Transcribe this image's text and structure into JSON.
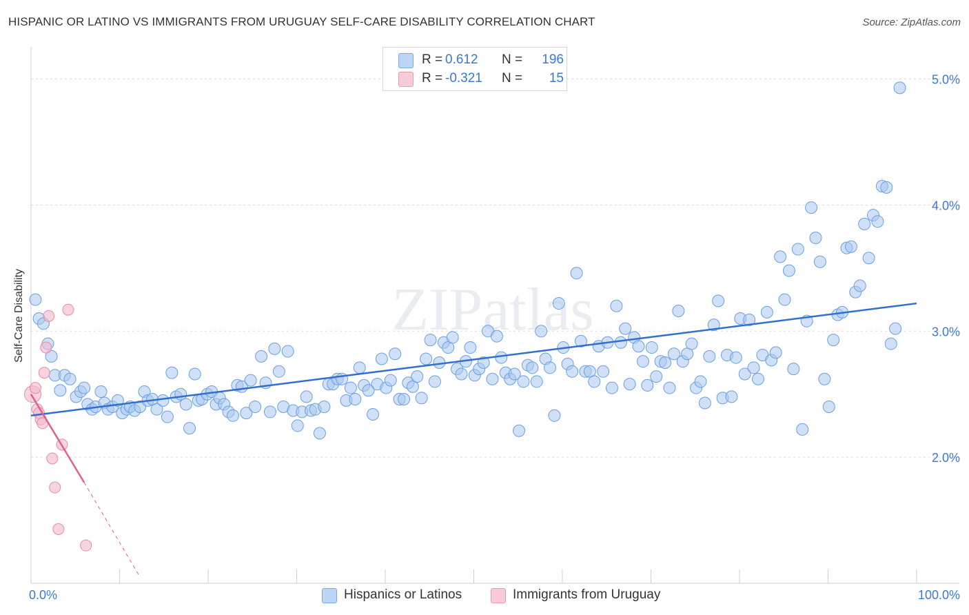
{
  "title": "HISPANIC OR LATINO VS IMMIGRANTS FROM URUGUAY SELF-CARE DISABILITY CORRELATION CHART",
  "source": "Source: ZipAtlas.com",
  "watermark": "ZIPatlas",
  "legend": {
    "rows": [
      {
        "label": "R =",
        "r": "0.612",
        "n_label": "N =",
        "n": "196",
        "color": "#a9c8f0"
      },
      {
        "label": "R =",
        "r": "-0.321",
        "n_label": "N =",
        "n": "15",
        "color": "#f4b8c9"
      }
    ]
  },
  "bottom_legend": [
    {
      "label": "Hispanics or Latinos",
      "color": "#a9c8f0"
    },
    {
      "label": "Immigrants from Uruguay",
      "color": "#f4b8c9"
    }
  ],
  "chart_data": {
    "type": "scatter",
    "title": "HISPANIC OR LATINO VS IMMIGRANTS FROM URUGUAY SELF-CARE DISABILITY CORRELATION CHART",
    "xlabel": "",
    "ylabel": "Self-Care Disability",
    "xlim": [
      0,
      100
    ],
    "ylim": [
      1.0,
      5.2
    ],
    "x_tick_labels": [
      "0.0%",
      "100.0%"
    ],
    "y_ticks": [
      2.0,
      3.0,
      4.0,
      5.0
    ],
    "y_tick_labels": [
      "2.0%",
      "3.0%",
      "4.0%",
      "5.0%"
    ],
    "grid": true,
    "colors": {
      "blue_fill": "#a9c8f0",
      "blue_stroke": "#6a9fe0",
      "blue_line": "#2f6fd0",
      "pink_fill": "#f4b8c9",
      "pink_stroke": "#e889a8",
      "pink_line": "#e0608a"
    },
    "series": [
      {
        "name": "Hispanics or Latinos",
        "R": 0.612,
        "N": 196,
        "trend": {
          "x0": 0,
          "y0": 2.33,
          "x1": 100,
          "y1": 3.22
        },
        "points": [
          [
            0.5,
            3.25
          ],
          [
            0.9,
            3.1
          ],
          [
            1.4,
            3.06
          ],
          [
            1.9,
            2.9
          ],
          [
            2.3,
            2.8
          ],
          [
            2.7,
            2.65
          ],
          [
            3.3,
            2.53
          ],
          [
            3.8,
            2.65
          ],
          [
            4.4,
            2.62
          ],
          [
            5.1,
            2.48
          ],
          [
            5.6,
            2.52
          ],
          [
            6.0,
            2.55
          ],
          [
            6.4,
            2.42
          ],
          [
            6.9,
            2.38
          ],
          [
            7.3,
            2.4
          ],
          [
            7.9,
            2.52
          ],
          [
            8.3,
            2.43
          ],
          [
            8.7,
            2.38
          ],
          [
            9.2,
            2.4
          ],
          [
            9.8,
            2.45
          ],
          [
            10.3,
            2.35
          ],
          [
            10.8,
            2.38
          ],
          [
            11.2,
            2.4
          ],
          [
            11.7,
            2.37
          ],
          [
            12.3,
            2.4
          ],
          [
            12.8,
            2.52
          ],
          [
            13.2,
            2.45
          ],
          [
            13.7,
            2.46
          ],
          [
            14.2,
            2.38
          ],
          [
            14.9,
            2.45
          ],
          [
            15.4,
            2.32
          ],
          [
            15.9,
            2.67
          ],
          [
            16.4,
            2.48
          ],
          [
            16.9,
            2.5
          ],
          [
            17.5,
            2.42
          ],
          [
            17.9,
            2.23
          ],
          [
            18.5,
            2.66
          ],
          [
            18.9,
            2.45
          ],
          [
            19.3,
            2.46
          ],
          [
            19.9,
            2.5
          ],
          [
            20.4,
            2.52
          ],
          [
            20.9,
            2.42
          ],
          [
            21.3,
            2.47
          ],
          [
            21.8,
            2.42
          ],
          [
            22.3,
            2.36
          ],
          [
            22.8,
            2.33
          ],
          [
            23.3,
            2.57
          ],
          [
            23.8,
            2.56
          ],
          [
            24.3,
            2.35
          ],
          [
            24.8,
            2.61
          ],
          [
            25.3,
            2.4
          ],
          [
            26.0,
            2.8
          ],
          [
            26.5,
            2.59
          ],
          [
            27.0,
            2.36
          ],
          [
            27.5,
            2.86
          ],
          [
            28.0,
            2.68
          ],
          [
            28.5,
            2.4
          ],
          [
            29.0,
            2.84
          ],
          [
            29.6,
            2.37
          ],
          [
            30.1,
            2.25
          ],
          [
            30.6,
            2.36
          ],
          [
            31.1,
            2.48
          ],
          [
            31.6,
            2.37
          ],
          [
            32.1,
            2.38
          ],
          [
            32.6,
            2.19
          ],
          [
            33.1,
            2.4
          ],
          [
            33.6,
            2.58
          ],
          [
            34.1,
            2.58
          ],
          [
            34.6,
            2.62
          ],
          [
            35.1,
            2.62
          ],
          [
            35.6,
            2.45
          ],
          [
            36.1,
            2.55
          ],
          [
            36.6,
            2.46
          ],
          [
            37.1,
            2.71
          ],
          [
            37.6,
            2.57
          ],
          [
            38.1,
            2.53
          ],
          [
            38.6,
            2.34
          ],
          [
            39.1,
            2.58
          ],
          [
            39.6,
            2.78
          ],
          [
            40.1,
            2.55
          ],
          [
            40.6,
            2.61
          ],
          [
            41.1,
            2.82
          ],
          [
            41.6,
            2.46
          ],
          [
            42.1,
            2.46
          ],
          [
            42.6,
            2.59
          ],
          [
            43.1,
            2.56
          ],
          [
            43.6,
            2.64
          ],
          [
            44.1,
            2.47
          ],
          [
            44.6,
            2.78
          ],
          [
            45.1,
            2.93
          ],
          [
            45.6,
            2.6
          ],
          [
            46.1,
            2.75
          ],
          [
            46.6,
            2.91
          ],
          [
            47.1,
            2.87
          ],
          [
            47.6,
            2.95
          ],
          [
            48.1,
            2.7
          ],
          [
            48.6,
            2.66
          ],
          [
            49.1,
            2.76
          ],
          [
            49.6,
            2.87
          ],
          [
            50.1,
            2.65
          ],
          [
            50.6,
            2.7
          ],
          [
            51.1,
            2.75
          ],
          [
            51.6,
            3.0
          ],
          [
            52.1,
            2.62
          ],
          [
            52.6,
            2.96
          ],
          [
            53.1,
            2.79
          ],
          [
            53.6,
            2.67
          ],
          [
            54.1,
            2.62
          ],
          [
            54.6,
            2.66
          ],
          [
            55.1,
            2.21
          ],
          [
            55.6,
            2.6
          ],
          [
            56.1,
            2.73
          ],
          [
            56.6,
            2.71
          ],
          [
            57.1,
            2.6
          ],
          [
            57.6,
            3.0
          ],
          [
            58.1,
            2.78
          ],
          [
            58.6,
            2.71
          ],
          [
            59.1,
            2.33
          ],
          [
            59.6,
            3.22
          ],
          [
            60.1,
            2.87
          ],
          [
            60.6,
            2.74
          ],
          [
            61.1,
            2.68
          ],
          [
            61.6,
            3.46
          ],
          [
            62.1,
            2.92
          ],
          [
            62.6,
            2.68
          ],
          [
            63.1,
            2.68
          ],
          [
            63.6,
            2.6
          ],
          [
            64.1,
            2.88
          ],
          [
            64.6,
            2.68
          ],
          [
            65.1,
            2.91
          ],
          [
            65.6,
            2.55
          ],
          [
            66.1,
            3.2
          ],
          [
            66.6,
            2.91
          ],
          [
            67.1,
            3.02
          ],
          [
            67.6,
            2.58
          ],
          [
            68.1,
            2.95
          ],
          [
            68.6,
            2.88
          ],
          [
            69.1,
            2.76
          ],
          [
            69.6,
            2.57
          ],
          [
            70.1,
            2.87
          ],
          [
            70.6,
            2.64
          ],
          [
            71.1,
            2.76
          ],
          [
            71.6,
            2.75
          ],
          [
            72.1,
            2.55
          ],
          [
            72.6,
            2.82
          ],
          [
            73.1,
            3.16
          ],
          [
            73.6,
            2.76
          ],
          [
            74.1,
            2.82
          ],
          [
            74.6,
            2.9
          ],
          [
            75.1,
            2.55
          ],
          [
            75.6,
            2.6
          ],
          [
            76.1,
            2.43
          ],
          [
            76.6,
            2.8
          ],
          [
            77.1,
            3.05
          ],
          [
            77.6,
            3.24
          ],
          [
            78.1,
            2.47
          ],
          [
            78.6,
            2.81
          ],
          [
            79.1,
            2.48
          ],
          [
            79.6,
            2.79
          ],
          [
            80.1,
            3.1
          ],
          [
            80.6,
            2.66
          ],
          [
            81.1,
            3.09
          ],
          [
            81.6,
            2.71
          ],
          [
            82.1,
            2.62
          ],
          [
            82.6,
            2.81
          ],
          [
            83.1,
            3.15
          ],
          [
            83.6,
            2.77
          ],
          [
            84.1,
            2.83
          ],
          [
            84.6,
            3.59
          ],
          [
            85.1,
            3.25
          ],
          [
            85.6,
            3.48
          ],
          [
            86.1,
            2.7
          ],
          [
            86.6,
            3.65
          ],
          [
            87.1,
            2.22
          ],
          [
            87.6,
            3.08
          ],
          [
            88.1,
            3.98
          ],
          [
            88.6,
            3.74
          ],
          [
            89.1,
            3.55
          ],
          [
            89.6,
            2.62
          ],
          [
            90.1,
            2.4
          ],
          [
            90.6,
            2.93
          ],
          [
            91.1,
            3.13
          ],
          [
            91.6,
            3.15
          ],
          [
            92.1,
            3.66
          ],
          [
            92.6,
            3.67
          ],
          [
            93.1,
            3.31
          ],
          [
            93.6,
            3.36
          ],
          [
            94.1,
            3.85
          ],
          [
            94.6,
            3.58
          ],
          [
            95.1,
            3.92
          ],
          [
            95.6,
            3.87
          ],
          [
            96.1,
            4.15
          ],
          [
            96.6,
            4.14
          ],
          [
            97.1,
            2.9
          ],
          [
            97.6,
            3.02
          ],
          [
            98.1,
            4.93
          ]
        ]
      },
      {
        "name": "Immigrants from Uruguay",
        "R": -0.321,
        "N": 15,
        "trend": {
          "x0": 0,
          "y0": 2.5,
          "x1": 6,
          "y1": 1.8,
          "dash_x1": 12.3,
          "dash_y1": 1.05
        },
        "points": [
          [
            0.2,
            2.5
          ],
          [
            0.5,
            2.55
          ],
          [
            0.7,
            2.38
          ],
          [
            0.9,
            2.35
          ],
          [
            1.1,
            2.3
          ],
          [
            1.3,
            2.27
          ],
          [
            1.5,
            2.67
          ],
          [
            1.7,
            2.87
          ],
          [
            2.0,
            3.12
          ],
          [
            2.4,
            1.99
          ],
          [
            2.7,
            1.76
          ],
          [
            3.1,
            1.43
          ],
          [
            3.5,
            2.1
          ],
          [
            4.2,
            3.17
          ],
          [
            6.2,
            1.3
          ]
        ]
      }
    ]
  }
}
